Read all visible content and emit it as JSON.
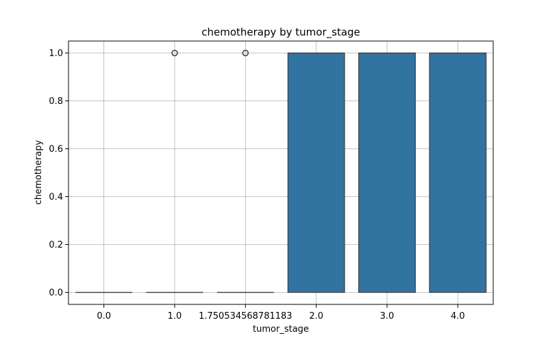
{
  "chart_data": {
    "type": "box",
    "title": "chemotherapy by tumor_stage",
    "xlabel": "tumor_stage",
    "ylabel": "chemotherapy",
    "categories": [
      "0.0",
      "1.0",
      "1.750534568781183",
      "2.0",
      "3.0",
      "4.0"
    ],
    "boxes": [
      {
        "category": "0.0",
        "q1": 0,
        "median": 0,
        "q3": 0,
        "whisker_low": 0,
        "whisker_high": 0,
        "outliers": []
      },
      {
        "category": "1.0",
        "q1": 0,
        "median": 0,
        "q3": 0,
        "whisker_low": 0,
        "whisker_high": 0,
        "outliers": [
          1.0
        ]
      },
      {
        "category": "1.750534568781183",
        "q1": 0,
        "median": 0,
        "q3": 0,
        "whisker_low": 0,
        "whisker_high": 0,
        "outliers": [
          1.0
        ]
      },
      {
        "category": "2.0",
        "q1": 0,
        "median": 1,
        "q3": 1,
        "whisker_low": 0,
        "whisker_high": 1,
        "outliers": []
      },
      {
        "category": "3.0",
        "q1": 0,
        "median": 1,
        "q3": 1,
        "whisker_low": 0,
        "whisker_high": 1,
        "outliers": []
      },
      {
        "category": "4.0",
        "q1": 0,
        "median": 1,
        "q3": 1,
        "whisker_low": 0,
        "whisker_high": 1,
        "outliers": []
      }
    ],
    "yticks": [
      "0.0",
      "0.2",
      "0.4",
      "0.6",
      "0.8",
      "1.0"
    ],
    "ylim": [
      -0.05,
      1.05
    ],
    "grid": true,
    "box_color": "#3274a1",
    "line_color": "#3d3d3d"
  }
}
